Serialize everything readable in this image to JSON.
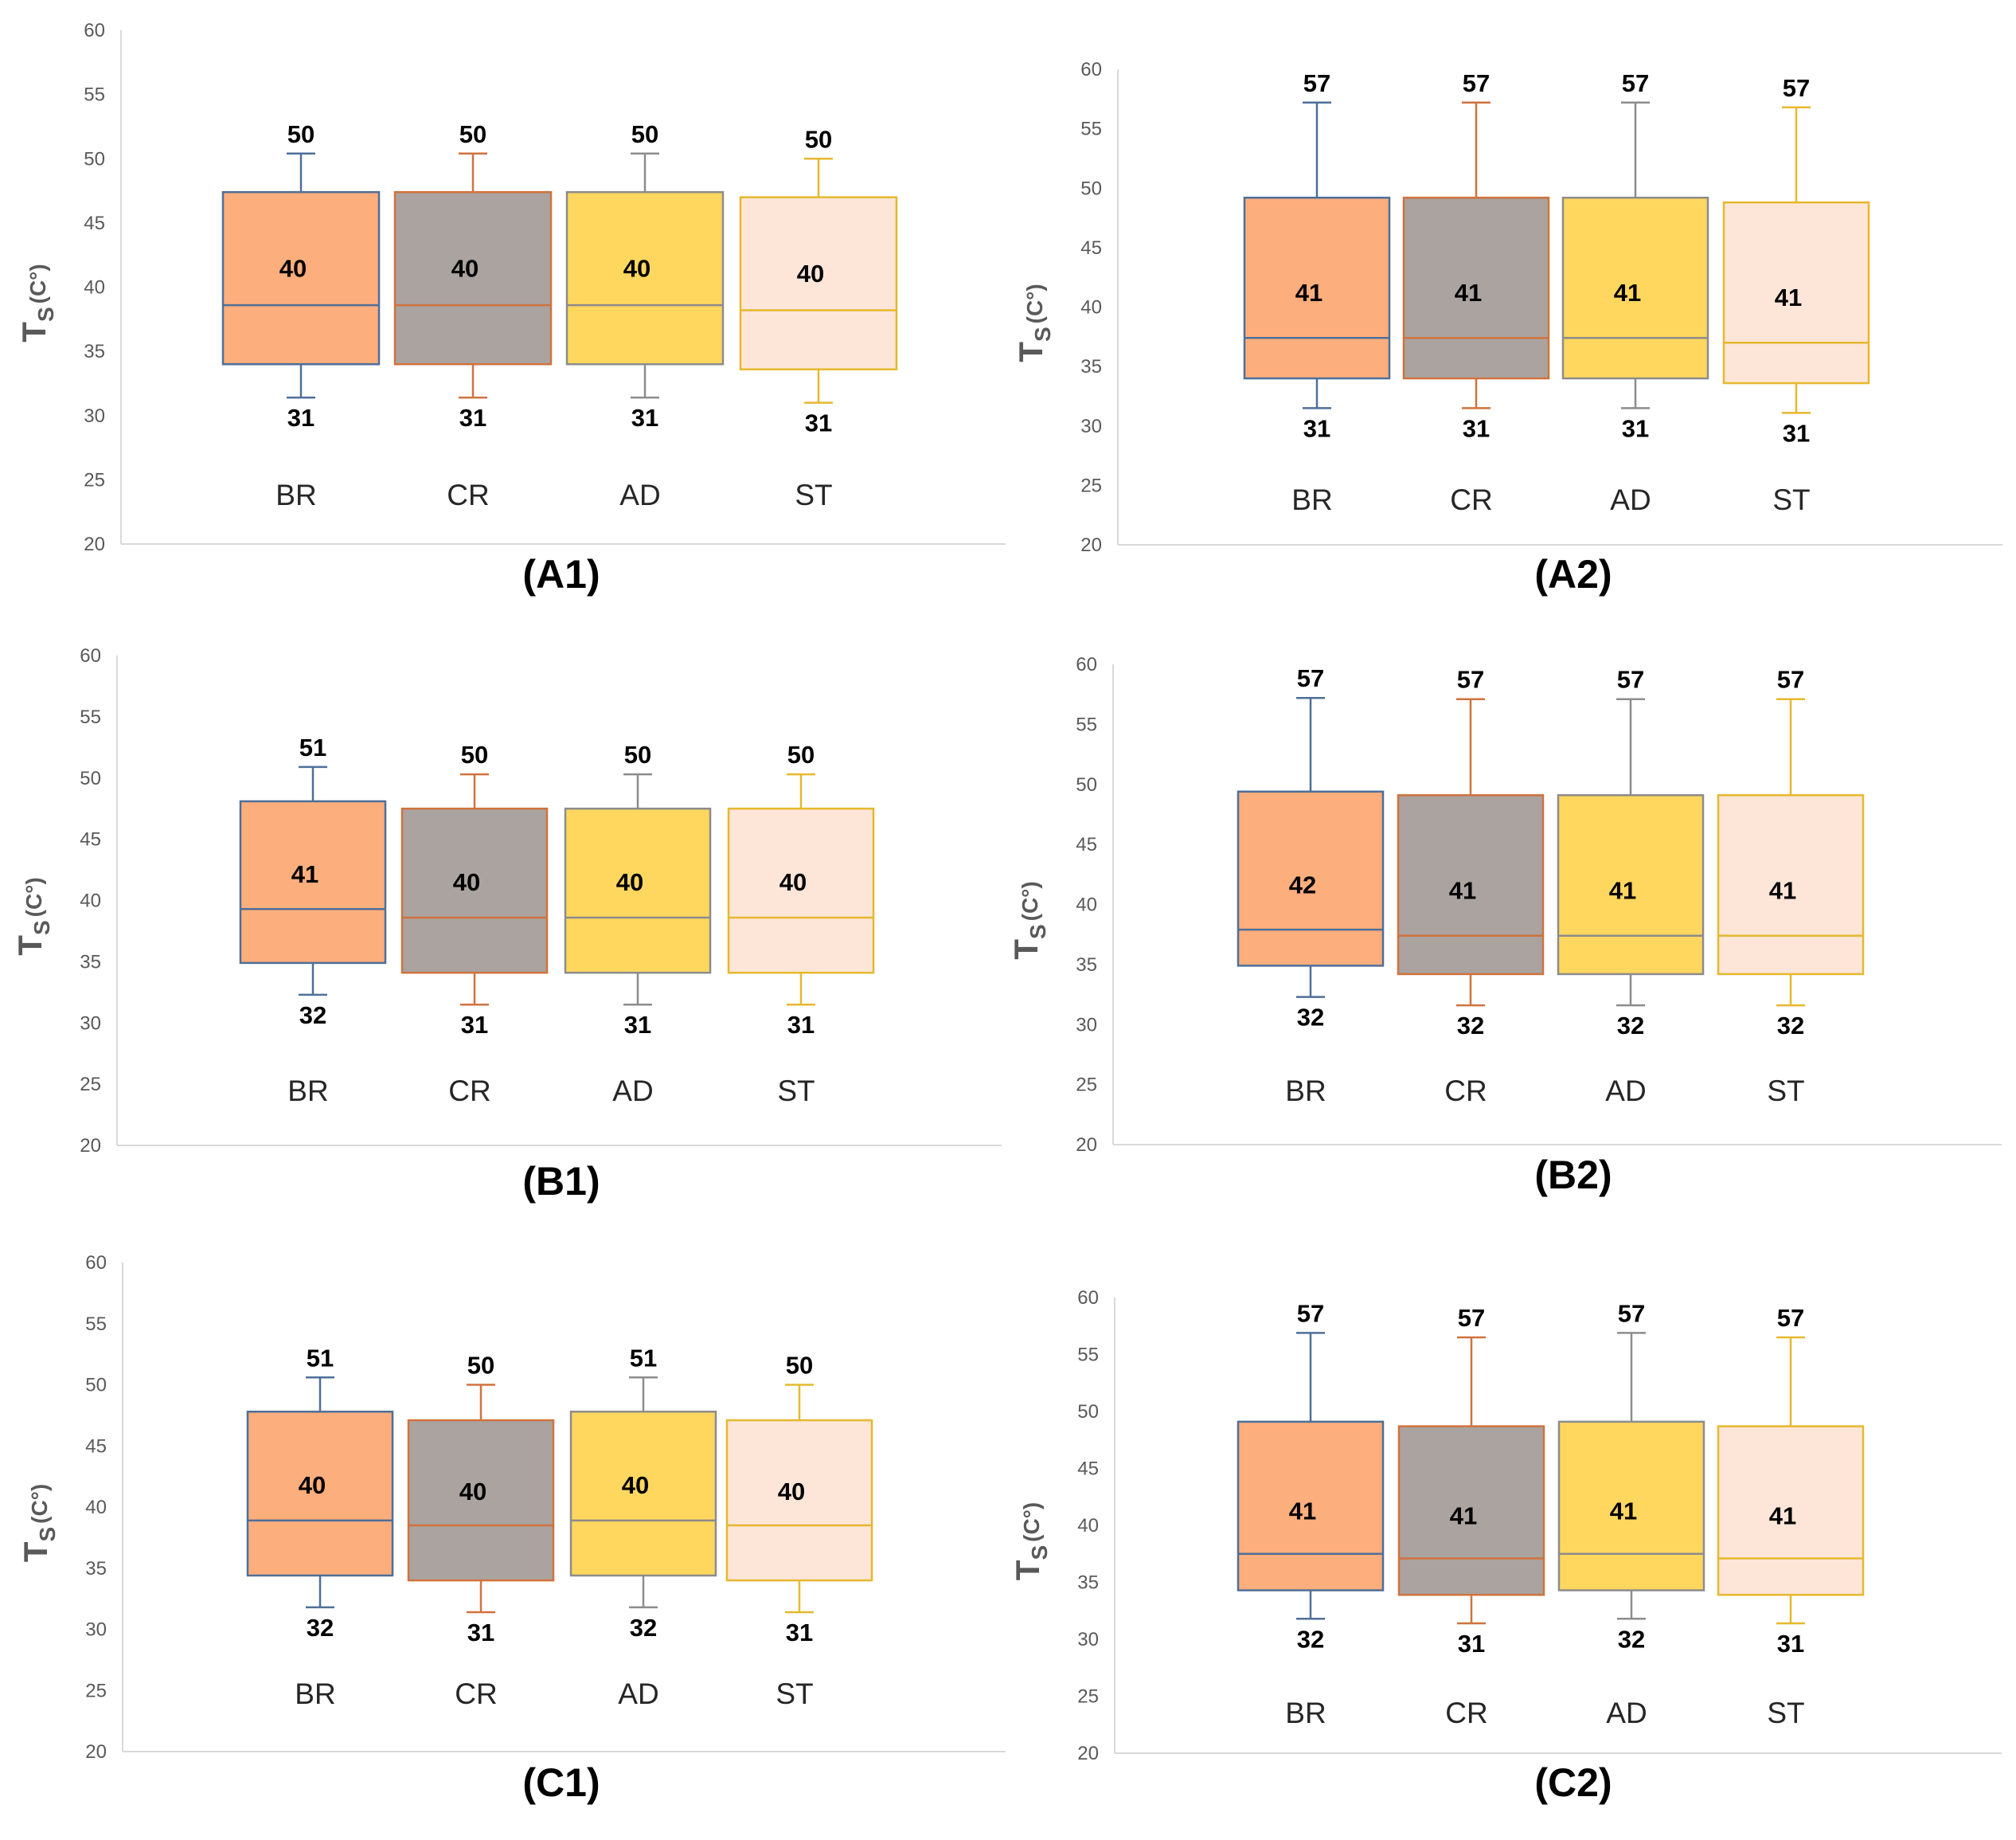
{
  "chart_data": [
    {
      "type": "boxplot",
      "panel_label": "(A1)",
      "ylabel": "T",
      "ylabel_sub": "S",
      "ylabel_unit": "(C°)",
      "ylim": [
        20,
        60
      ],
      "yticks": [
        20,
        25,
        30,
        35,
        40,
        45,
        50,
        55,
        60
      ],
      "categories": [
        "BR",
        "CR",
        "AD",
        "ST"
      ],
      "series": [
        {
          "category": "BR",
          "min": 31.4,
          "q1": 34.0,
          "median": 38.6,
          "q3": 47.4,
          "max": 50.4,
          "label_max": "50",
          "label_mid": "40",
          "label_min": "31"
        },
        {
          "category": "CR",
          "min": 31.4,
          "q1": 34.0,
          "median": 38.6,
          "q3": 47.4,
          "max": 50.4,
          "label_max": "50",
          "label_mid": "40",
          "label_min": "31"
        },
        {
          "category": "AD",
          "min": 31.4,
          "q1": 34.0,
          "median": 38.6,
          "q3": 47.4,
          "max": 50.4,
          "label_max": "50",
          "label_mid": "40",
          "label_min": "31"
        },
        {
          "category": "ST",
          "min": 31.0,
          "q1": 33.6,
          "median": 38.2,
          "q3": 47.0,
          "max": 50.0,
          "label_max": "50",
          "label_mid": "40",
          "label_min": "31"
        }
      ]
    },
    {
      "type": "boxplot",
      "panel_label": "(A2)",
      "ylabel": "T",
      "ylabel_sub": "S",
      "ylabel_unit": "(C°)",
      "ylim": [
        20,
        60
      ],
      "yticks": [
        20,
        25,
        30,
        35,
        40,
        45,
        50,
        55,
        60
      ],
      "categories": [
        "BR",
        "CR",
        "AD",
        "ST"
      ],
      "series": [
        {
          "category": "BR",
          "min": 31.5,
          "q1": 34.0,
          "median": 37.4,
          "q3": 49.2,
          "max": 57.2,
          "label_max": "57",
          "label_mid": "41",
          "label_min": "31"
        },
        {
          "category": "CR",
          "min": 31.5,
          "q1": 34.0,
          "median": 37.4,
          "q3": 49.2,
          "max": 57.2,
          "label_max": "57",
          "label_mid": "41",
          "label_min": "31"
        },
        {
          "category": "AD",
          "min": 31.5,
          "q1": 34.0,
          "median": 37.4,
          "q3": 49.2,
          "max": 57.2,
          "label_max": "57",
          "label_mid": "41",
          "label_min": "31"
        },
        {
          "category": "ST",
          "min": 31.1,
          "q1": 33.6,
          "median": 37.0,
          "q3": 48.8,
          "max": 56.8,
          "label_max": "57",
          "label_mid": "41",
          "label_min": "31"
        }
      ]
    },
    {
      "type": "boxplot",
      "panel_label": "(B1)",
      "ylabel": "T",
      "ylabel_sub": "S",
      "ylabel_unit": "(C°)",
      "ylim": [
        20,
        60
      ],
      "yticks": [
        20,
        25,
        30,
        35,
        40,
        45,
        50,
        55,
        60
      ],
      "categories": [
        "BR",
        "CR",
        "AD",
        "ST"
      ],
      "series": [
        {
          "category": "BR",
          "min": 32.3,
          "q1": 34.9,
          "median": 39.3,
          "q3": 48.1,
          "max": 50.9,
          "label_max": "51",
          "label_mid": "41",
          "label_min": "32"
        },
        {
          "category": "CR",
          "min": 31.5,
          "q1": 34.1,
          "median": 38.6,
          "q3": 47.5,
          "max": 50.3,
          "label_max": "50",
          "label_mid": "40",
          "label_min": "31"
        },
        {
          "category": "AD",
          "min": 31.5,
          "q1": 34.1,
          "median": 38.6,
          "q3": 47.5,
          "max": 50.3,
          "label_max": "50",
          "label_mid": "40",
          "label_min": "31"
        },
        {
          "category": "ST",
          "min": 31.5,
          "q1": 34.1,
          "median": 38.6,
          "q3": 47.5,
          "max": 50.3,
          "label_max": "50",
          "label_mid": "40",
          "label_min": "31"
        }
      ]
    },
    {
      "type": "boxplot",
      "panel_label": "(B2)",
      "ylabel": "T",
      "ylabel_sub": "S",
      "ylabel_unit": "(C°)",
      "ylim": [
        20,
        60
      ],
      "yticks": [
        20,
        25,
        30,
        35,
        40,
        45,
        50,
        55,
        60
      ],
      "categories": [
        "BR",
        "CR",
        "AD",
        "ST"
      ],
      "series": [
        {
          "category": "BR",
          "min": 32.3,
          "q1": 34.9,
          "median": 37.9,
          "q3": 49.4,
          "max": 57.2,
          "label_max": "57",
          "label_mid": "42",
          "label_min": "32"
        },
        {
          "category": "CR",
          "min": 31.6,
          "q1": 34.2,
          "median": 37.4,
          "q3": 49.1,
          "max": 57.1,
          "label_max": "57",
          "label_mid": "41",
          "label_min": "32"
        },
        {
          "category": "AD",
          "min": 31.6,
          "q1": 34.2,
          "median": 37.4,
          "q3": 49.1,
          "max": 57.1,
          "label_max": "57",
          "label_mid": "41",
          "label_min": "32"
        },
        {
          "category": "ST",
          "min": 31.6,
          "q1": 34.2,
          "median": 37.4,
          "q3": 49.1,
          "max": 57.1,
          "label_max": "57",
          "label_mid": "41",
          "label_min": "32"
        }
      ]
    },
    {
      "type": "boxplot",
      "panel_label": "(C1)",
      "ylabel": "T",
      "ylabel_sub": "S",
      "ylabel_unit": "(C°)",
      "ylim": [
        20,
        60
      ],
      "yticks": [
        20,
        25,
        30,
        35,
        40,
        45,
        50,
        55,
        60
      ],
      "categories": [
        "BR",
        "CR",
        "AD",
        "ST"
      ],
      "series": [
        {
          "category": "BR",
          "min": 31.8,
          "q1": 34.4,
          "median": 38.9,
          "q3": 47.8,
          "max": 50.6,
          "label_max": "51",
          "label_mid": "40",
          "label_min": "32"
        },
        {
          "category": "CR",
          "min": 31.4,
          "q1": 34.0,
          "median": 38.5,
          "q3": 47.1,
          "max": 50.0,
          "label_max": "50",
          "label_mid": "40",
          "label_min": "31"
        },
        {
          "category": "AD",
          "min": 31.8,
          "q1": 34.4,
          "median": 38.9,
          "q3": 47.8,
          "max": 50.6,
          "label_max": "51",
          "label_mid": "40",
          "label_min": "32"
        },
        {
          "category": "ST",
          "min": 31.4,
          "q1": 34.0,
          "median": 38.5,
          "q3": 47.1,
          "max": 50.0,
          "label_max": "50",
          "label_mid": "40",
          "label_min": "31"
        }
      ]
    },
    {
      "type": "boxplot",
      "panel_label": "(C2)",
      "ylabel": "T",
      "ylabel_sub": "S",
      "ylabel_unit": "(C°)",
      "ylim": [
        20,
        60
      ],
      "yticks": [
        20,
        25,
        30,
        35,
        40,
        45,
        50,
        55,
        60
      ],
      "categories": [
        "BR",
        "CR",
        "AD",
        "ST"
      ],
      "series": [
        {
          "category": "BR",
          "min": 31.8,
          "q1": 34.3,
          "median": 37.5,
          "q3": 49.1,
          "max": 56.9,
          "label_max": "57",
          "label_mid": "41",
          "label_min": "32"
        },
        {
          "category": "CR",
          "min": 31.4,
          "q1": 33.9,
          "median": 37.1,
          "q3": 48.7,
          "max": 56.5,
          "label_max": "57",
          "label_mid": "41",
          "label_min": "31"
        },
        {
          "category": "AD",
          "min": 31.8,
          "q1": 34.3,
          "median": 37.5,
          "q3": 49.1,
          "max": 56.9,
          "label_max": "57",
          "label_mid": "41",
          "label_min": "32"
        },
        {
          "category": "ST",
          "min": 31.4,
          "q1": 33.9,
          "median": 37.1,
          "q3": 48.7,
          "max": 56.5,
          "label_max": "57",
          "label_mid": "41",
          "label_min": "31"
        }
      ]
    }
  ],
  "colors": {
    "BR": {
      "fill": "#fcae7c",
      "stroke": "#4e6f99"
    },
    "CR": {
      "fill": "#aaa39f",
      "stroke": "#d0723e"
    },
    "AD": {
      "fill": "#ffd75e",
      "stroke": "#8c8c8c"
    },
    "ST": {
      "fill": "#fde5d8",
      "stroke": "#e6b82e"
    },
    "axis": "#d9d9d9",
    "tick_text": "#595959"
  }
}
